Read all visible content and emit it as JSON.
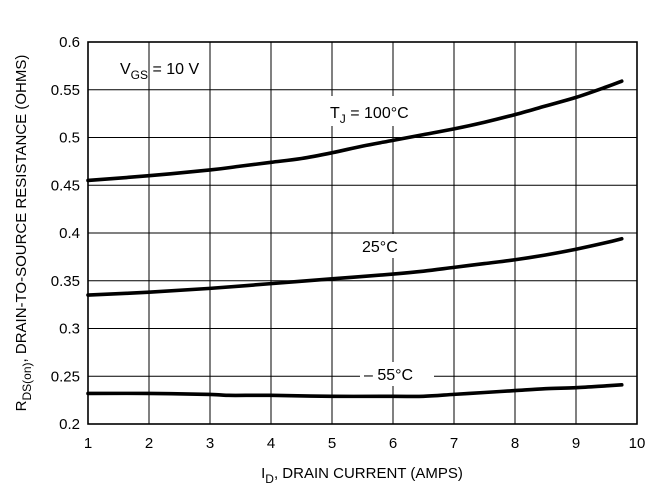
{
  "chart_data": {
    "type": "line",
    "xlabel": {
      "main": "I",
      "sub": "D",
      "rest": ", DRAIN CURRENT (AMPS)"
    },
    "ylabel": {
      "main": "R",
      "sub": "DS(on)",
      "rest": ", DRAIN-TO-SOURCE RESISTANCE (OHMS)"
    },
    "xlim": [
      1,
      10
    ],
    "ylim": [
      0.2,
      0.6
    ],
    "xticks": [
      "1",
      "2",
      "3",
      "4",
      "5",
      "6",
      "7",
      "8",
      "9",
      "10"
    ],
    "yticks": [
      "0.2",
      "0.25",
      "0.3",
      "0.35",
      "0.4",
      "0.45",
      "0.5",
      "0.55",
      "0.6"
    ],
    "grid": true,
    "condition": {
      "main": "V",
      "sub": "GS",
      "rest": " = 10 V"
    },
    "series": [
      {
        "name": "T_J = 100°C",
        "label": {
          "main": "T",
          "sub": "J",
          "rest": " = 100°C"
        },
        "x": [
          1,
          2,
          3,
          3.5,
          4,
          4.5,
          5,
          5.5,
          6,
          6.5,
          7,
          7.5,
          8,
          8.5,
          9,
          9.5,
          9.75
        ],
        "y": [
          0.455,
          0.46,
          0.466,
          0.47,
          0.474,
          0.478,
          0.484,
          0.491,
          0.497,
          0.503,
          0.509,
          0.516,
          0.524,
          0.533,
          0.542,
          0.553,
          0.559
        ]
      },
      {
        "name": "25°C",
        "label": {
          "main": "25°C",
          "sub": "",
          "rest": ""
        },
        "x": [
          1,
          2,
          3,
          4,
          5,
          6,
          6.5,
          7,
          7.5,
          8,
          8.5,
          9,
          9.5,
          9.75
        ],
        "y": [
          0.335,
          0.338,
          0.342,
          0.347,
          0.352,
          0.357,
          0.36,
          0.364,
          0.368,
          0.372,
          0.377,
          0.383,
          0.39,
          0.394
        ]
      },
      {
        "name": "-55°C",
        "label": {
          "main": "– 55°C",
          "sub": "",
          "rest": ""
        },
        "x": [
          1,
          2,
          3,
          3.3,
          4,
          5,
          6,
          6.5,
          7,
          7.5,
          8,
          8.5,
          9,
          9.5,
          9.75
        ],
        "y": [
          0.232,
          0.232,
          0.231,
          0.23,
          0.23,
          0.229,
          0.229,
          0.229,
          0.231,
          0.233,
          0.235,
          0.237,
          0.238,
          0.24,
          0.241
        ]
      }
    ]
  }
}
